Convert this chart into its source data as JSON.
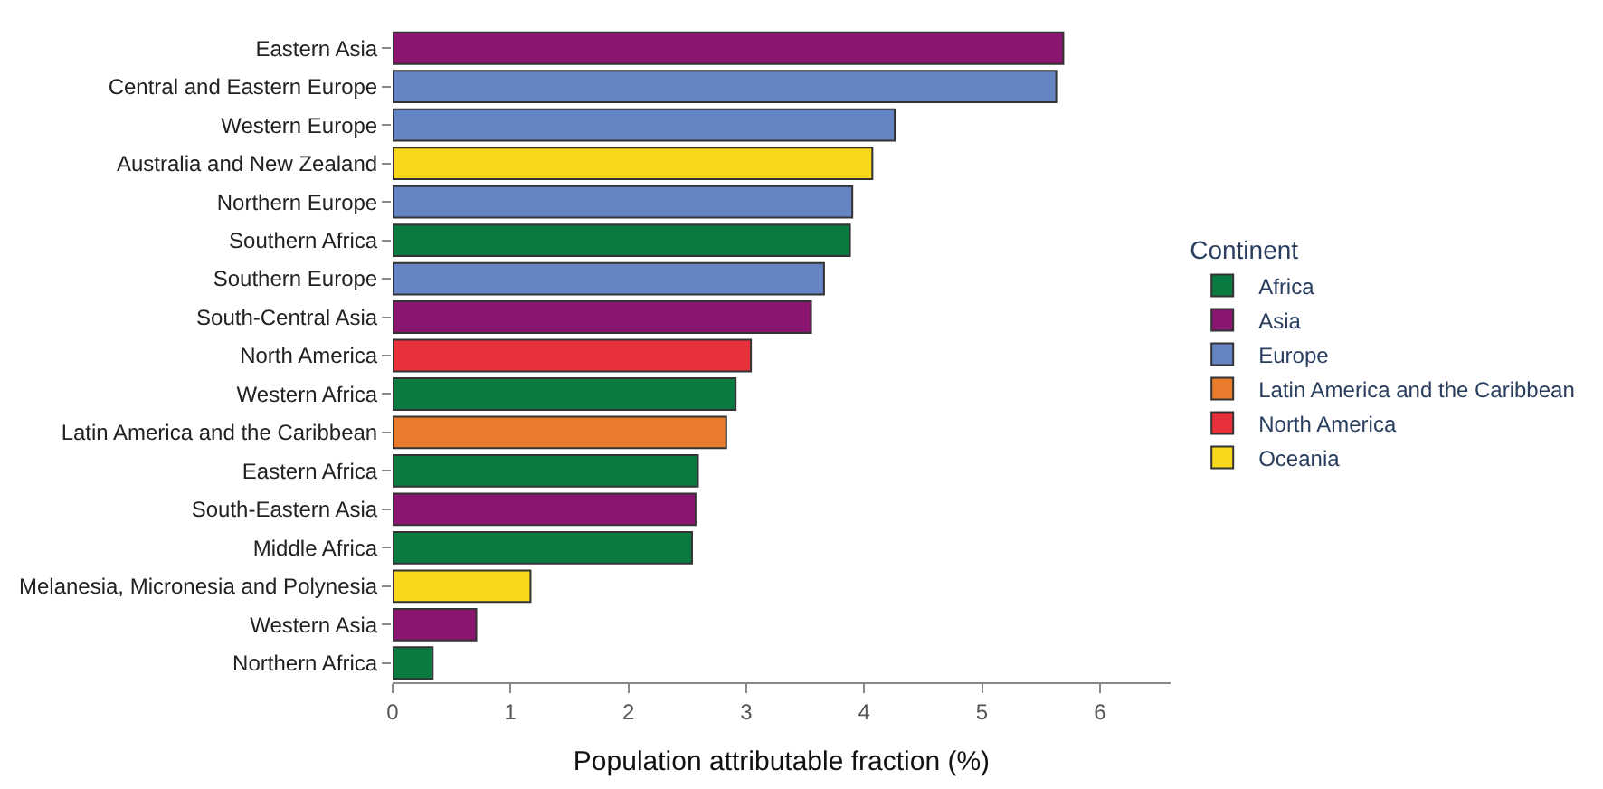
{
  "chart_data": {
    "type": "bar",
    "orientation": "horizontal",
    "xlabel": "Population attributable fraction (%)",
    "legend_title": "Continent",
    "legend": "right",
    "categories": [
      "Eastern Asia",
      "Central and Eastern Europe",
      "Western Europe",
      "Australia and New Zealand",
      "Northern Europe",
      "Southern Africa",
      "Southern Europe",
      "South-Central Asia",
      "North America",
      "Western Africa",
      "Latin America and the Caribbean",
      "Eastern Africa",
      "South-Eastern Asia",
      "Middle Africa",
      "Melanesia, Micronesia and Polynesia",
      "Western Asia",
      "Northern Africa"
    ],
    "xlim": [
      0,
      6.6
    ],
    "xticks": [
      0,
      1,
      2,
      3,
      4,
      5,
      6
    ],
    "series": [
      {
        "name": "Africa",
        "color": "#0b7a40",
        "values": [
          null,
          null,
          null,
          null,
          null,
          3.88,
          null,
          null,
          null,
          2.91,
          null,
          2.59,
          null,
          2.54,
          null,
          null,
          0.34
        ]
      },
      {
        "name": "Asia",
        "color": "#8a1670",
        "values": [
          5.69,
          null,
          null,
          null,
          null,
          null,
          null,
          3.55,
          null,
          null,
          null,
          null,
          2.57,
          null,
          null,
          0.71,
          null
        ]
      },
      {
        "name": "Europe",
        "color": "#6484c4",
        "values": [
          null,
          5.63,
          4.26,
          null,
          3.9,
          null,
          3.66,
          null,
          null,
          null,
          null,
          null,
          null,
          null,
          null,
          null,
          null
        ]
      },
      {
        "name": "Latin America and the Caribbean",
        "color": "#e87c2c",
        "values": [
          null,
          null,
          null,
          null,
          null,
          null,
          null,
          null,
          null,
          null,
          2.83,
          null,
          null,
          null,
          null,
          null,
          null
        ]
      },
      {
        "name": "North America",
        "color": "#e8303a",
        "values": [
          null,
          null,
          null,
          null,
          null,
          null,
          null,
          null,
          3.04,
          null,
          null,
          null,
          null,
          null,
          null,
          null,
          null
        ]
      },
      {
        "name": "Oceania",
        "color": "#f8d81a",
        "values": [
          null,
          null,
          null,
          4.07,
          null,
          null,
          null,
          null,
          null,
          null,
          null,
          null,
          null,
          null,
          1.17,
          null,
          null
        ]
      }
    ]
  }
}
